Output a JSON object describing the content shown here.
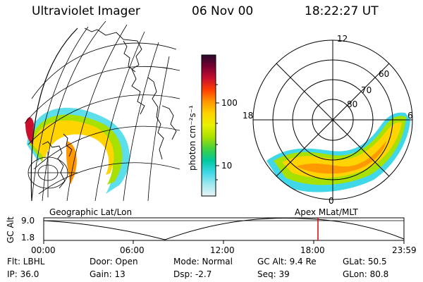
{
  "header": {
    "instrument": "Ultraviolet Imager",
    "date": "06 Nov 00",
    "time": "18:22:27 UT"
  },
  "colorbar": {
    "unit_label": "photon cm⁻²s⁻¹",
    "ticks": [
      "100",
      "10"
    ],
    "colors": [
      "#2a0a2a",
      "#7a0030",
      "#c8102e",
      "#ff4000",
      "#ff9900",
      "#ffd400",
      "#e8f000",
      "#a8e000",
      "#40d040",
      "#00c8a0",
      "#40d8e8",
      "#a0e8f0",
      "#e8f4f8"
    ]
  },
  "polar_plot": {
    "lat_labels": [
      "60",
      "70",
      "80"
    ],
    "mlt_labels": [
      "12",
      "18",
      "6",
      "0"
    ]
  },
  "projection_labels": {
    "left": "Geographic Lat/Lon",
    "right": "Apex MLat/MLT"
  },
  "timeline": {
    "axis_label": "GC Alt",
    "y_ticks": [
      "9.0",
      "1.8"
    ],
    "x_ticks": [
      "00:00",
      "06:00",
      "12:00",
      "18:00",
      "23:59"
    ],
    "marker_time": "18:22",
    "marker_color": "#e00000"
  },
  "status": {
    "filter": "Flt: LBHL",
    "door": "Door: Open",
    "mode": "Mode: Normal",
    "gc_alt": "GC Alt: 9.4 Re",
    "glat": "GLat: 50.5",
    "ip": "IP: 36.0",
    "gain": "Gain: 13",
    "dsp": "Dsp:    -2.7",
    "seq": "Seq: 39",
    "glon": "GLon: 80.8"
  }
}
